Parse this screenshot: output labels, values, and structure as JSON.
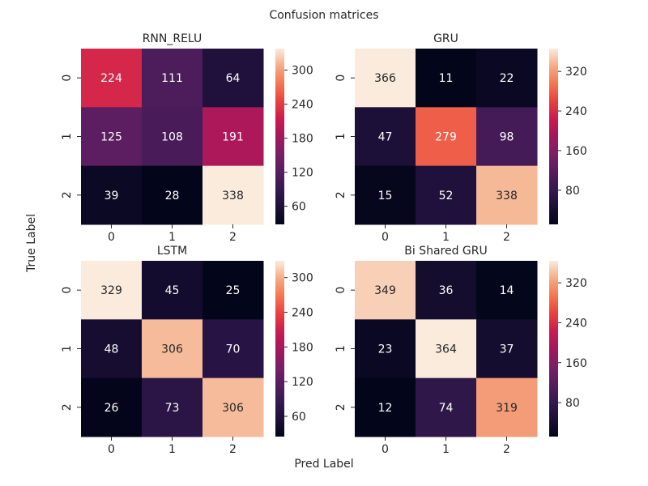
{
  "figure": {
    "suptitle": "Confusion matrices",
    "xlabel": "Pred Label",
    "ylabel": "True Label"
  },
  "colormap": "rocket",
  "chart_data": [
    {
      "type": "heatmap",
      "title": "RNN_RELU",
      "x_categories": [
        "0",
        "1",
        "2"
      ],
      "y_categories": [
        "0",
        "1",
        "2"
      ],
      "values": [
        [
          224,
          111,
          64
        ],
        [
          125,
          108,
          191
        ],
        [
          39,
          28,
          338
        ]
      ],
      "vmin": 28,
      "vmax": 338,
      "colorbar_ticks": [
        "60",
        "120",
        "180",
        "240",
        "300"
      ]
    },
    {
      "type": "heatmap",
      "title": "GRU",
      "x_categories": [
        "0",
        "1",
        "2"
      ],
      "y_categories": [
        "0",
        "1",
        "2"
      ],
      "values": [
        [
          366,
          11,
          22
        ],
        [
          47,
          279,
          98
        ],
        [
          15,
          52,
          338
        ]
      ],
      "vmin": 11,
      "vmax": 366,
      "colorbar_ticks": [
        "80",
        "160",
        "240",
        "320"
      ]
    },
    {
      "type": "heatmap",
      "title": "LSTM",
      "x_categories": [
        "0",
        "1",
        "2"
      ],
      "y_categories": [
        "0",
        "1",
        "2"
      ],
      "values": [
        [
          329,
          45,
          25
        ],
        [
          48,
          306,
          70
        ],
        [
          26,
          73,
          306
        ]
      ],
      "vmin": 25,
      "vmax": 329,
      "colorbar_ticks": [
        "60",
        "120",
        "180",
        "240",
        "300"
      ]
    },
    {
      "type": "heatmap",
      "title": "Bi Shared GRU",
      "x_categories": [
        "0",
        "1",
        "2"
      ],
      "y_categories": [
        "0",
        "1",
        "2"
      ],
      "values": [
        [
          349,
          36,
          14
        ],
        [
          23,
          364,
          37
        ],
        [
          12,
          74,
          319
        ]
      ],
      "vmin": 12,
      "vmax": 364,
      "colorbar_ticks": [
        "80",
        "160",
        "240",
        "320"
      ]
    }
  ]
}
